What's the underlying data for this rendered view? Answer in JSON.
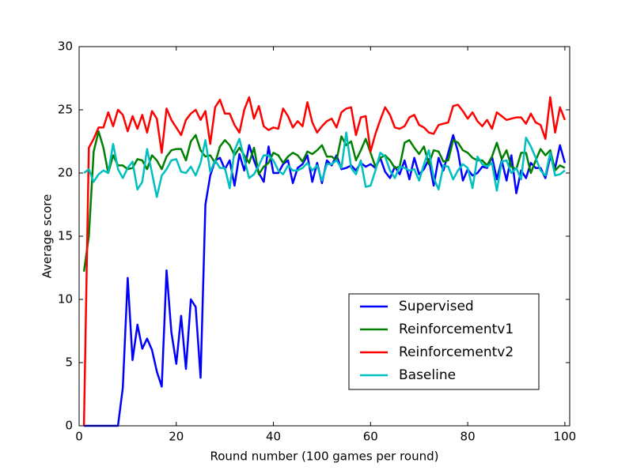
{
  "chart_data": {
    "type": "line",
    "xlabel": "Round number (100 games per round)",
    "ylabel": "Average score",
    "x": [
      1,
      2,
      3,
      4,
      5,
      6,
      7,
      8,
      9,
      10,
      11,
      12,
      13,
      14,
      15,
      16,
      17,
      18,
      19,
      20,
      21,
      22,
      23,
      24,
      25,
      26,
      27,
      28,
      29,
      30,
      31,
      32,
      33,
      34,
      35,
      36,
      37,
      38,
      39,
      40,
      41,
      42,
      43,
      44,
      45,
      46,
      47,
      48,
      49,
      50,
      51,
      52,
      53,
      54,
      55,
      56,
      57,
      58,
      59,
      60,
      61,
      62,
      63,
      64,
      65,
      66,
      67,
      68,
      69,
      70,
      71,
      72,
      73,
      74,
      75,
      76,
      77,
      78,
      79,
      80,
      81,
      82,
      83,
      84,
      85,
      86,
      87,
      88,
      89,
      90,
      91,
      92,
      93,
      94,
      95,
      96,
      97,
      98,
      99,
      100
    ],
    "xlim": [
      0,
      101
    ],
    "xticks": [
      0,
      20,
      40,
      60,
      80,
      100
    ],
    "ylim": [
      0,
      30
    ],
    "yticks": [
      0,
      5,
      10,
      15,
      20,
      25,
      30
    ],
    "legend_loc": "lower right",
    "series": [
      {
        "name": "Supervised",
        "color": "#0000ff",
        "values": [
          0,
          0,
          0,
          0,
          0,
          0,
          0,
          0,
          3,
          11.7,
          5.2,
          8,
          6.1,
          6.9,
          6,
          4.3,
          3.1,
          12.3,
          7.4,
          4.9,
          8.7,
          4.5,
          10,
          9.4,
          3.8,
          17.5,
          19.8,
          21,
          21.2,
          20.3,
          21,
          19,
          21.5,
          20.2,
          22.2,
          21,
          20,
          19.3,
          22.1,
          20,
          20,
          20.7,
          21,
          19.2,
          20.4,
          20.7,
          21.4,
          19.3,
          20.8,
          19.2,
          21,
          20.6,
          21.4,
          20.3,
          20.4,
          20.6,
          20.2,
          20.8,
          20.5,
          20.7,
          20.4,
          21.2,
          20.1,
          19.6,
          20.5,
          19.9,
          21,
          19.5,
          21.2,
          19.9,
          20.3,
          21.1,
          19,
          21.2,
          20.2,
          21.6,
          23,
          21.7,
          19.4,
          20.3,
          19.8,
          20,
          20.5,
          20.4,
          21.3,
          19.5,
          21,
          19.4,
          21.4,
          18.4,
          20.2,
          19.6,
          20.8,
          20.4,
          20.4,
          19.6,
          21.3,
          20.4,
          22.2,
          20.8
        ]
      },
      {
        "name": "Reinforcementv1",
        "color": "#008000",
        "values": [
          12.2,
          15,
          21.7,
          23.3,
          22,
          20,
          21.4,
          20.6,
          20.6,
          20.3,
          20.4,
          21.1,
          21,
          20.3,
          21.4,
          21,
          20.3,
          21.3,
          21.8,
          21.9,
          21.9,
          21,
          22.5,
          23,
          21.8,
          21.3,
          21.4,
          20.8,
          22.1,
          22.6,
          22.2,
          21.4,
          22,
          21.4,
          20.8,
          22,
          19.9,
          20.5,
          20.8,
          21.6,
          21.4,
          20.8,
          21.3,
          21.6,
          21.4,
          20.9,
          21.7,
          21.5,
          21.8,
          22.2,
          21.3,
          21.3,
          21,
          22.9,
          22.2,
          22.5,
          21,
          21.8,
          22.7,
          21.6,
          20.5,
          21.2,
          21.4,
          21,
          20.4,
          20.5,
          22.4,
          22.6,
          22,
          21.5,
          22.1,
          20.7,
          21.8,
          21.7,
          20.9,
          21,
          22.6,
          22.4,
          21.8,
          21.6,
          21.2,
          21,
          21,
          20.6,
          21.3,
          22.4,
          21.1,
          21.8,
          20.5,
          20.3,
          21.6,
          21.6,
          20,
          21,
          21.9,
          21.4,
          21.8,
          20.2,
          20.6,
          20.4
        ]
      },
      {
        "name": "Reinforcementv2",
        "color": "#ff0000",
        "values": [
          0,
          22,
          22.7,
          23.6,
          23.6,
          24.8,
          23.7,
          25,
          24.6,
          23.3,
          24.5,
          23.5,
          24.6,
          23.2,
          24.9,
          24.3,
          21.6,
          25.1,
          24.2,
          23.6,
          23,
          24.2,
          24.7,
          25,
          24.2,
          24.9,
          22.3,
          25.2,
          25.8,
          24.7,
          24.7,
          23.8,
          23.2,
          25,
          26,
          24.3,
          25.3,
          23.7,
          23.4,
          23.6,
          23.5,
          25.1,
          24.5,
          23.6,
          24.1,
          23.7,
          25.6,
          24,
          23.2,
          23.7,
          24.1,
          24.3,
          23.6,
          24.8,
          25.1,
          25.2,
          23,
          24.4,
          24.5,
          21.7,
          23.1,
          24.2,
          25.2,
          24.6,
          23.6,
          23.5,
          23.7,
          24.4,
          24.6,
          23.8,
          23.6,
          23.2,
          23.1,
          23.8,
          23.9,
          24,
          25.3,
          25.4,
          24.9,
          24.3,
          24.8,
          24.1,
          23.7,
          24.2,
          23.5,
          24.8,
          24.5,
          24.2,
          24.3,
          24.4,
          24.4,
          23.9,
          24.7,
          24,
          23.8,
          22.7,
          26,
          23.2,
          25.2,
          24.2
        ]
      },
      {
        "name": "Baseline",
        "color": "#00bfbf",
        "values": [
          20,
          20.3,
          19.3,
          19.9,
          20.2,
          20,
          22.3,
          20.3,
          19.6,
          20.4,
          20.9,
          18.7,
          19.3,
          21.9,
          20,
          18.1,
          19.8,
          20.3,
          21,
          21.1,
          20.1,
          20,
          20.5,
          19.8,
          20.8,
          22.6,
          20.1,
          21,
          20.4,
          20.4,
          18.8,
          21.8,
          22.7,
          21.1,
          19.6,
          19.9,
          20.6,
          21.4,
          21.4,
          21,
          20.2,
          19.9,
          20.6,
          20.2,
          20.2,
          20.4,
          20.8,
          20.2,
          20.6,
          19.4,
          20.7,
          20.7,
          21,
          20.4,
          23.2,
          20.4,
          19.9,
          21,
          18.9,
          19,
          20.2,
          21.6,
          21.3,
          20.2,
          19.6,
          20.5,
          20.4,
          20.2,
          20.3,
          19.4,
          20.7,
          21.8,
          19.6,
          18.7,
          20.6,
          20.5,
          19.5,
          20.2,
          20.7,
          20.4,
          18.8,
          21.3,
          20.7,
          20.5,
          20.8,
          18.6,
          20.9,
          21,
          20,
          20.4,
          19.5,
          22.8,
          22.1,
          21.2,
          20.2,
          19.8,
          21.6,
          19.8,
          19.9,
          20.2
        ]
      }
    ]
  }
}
